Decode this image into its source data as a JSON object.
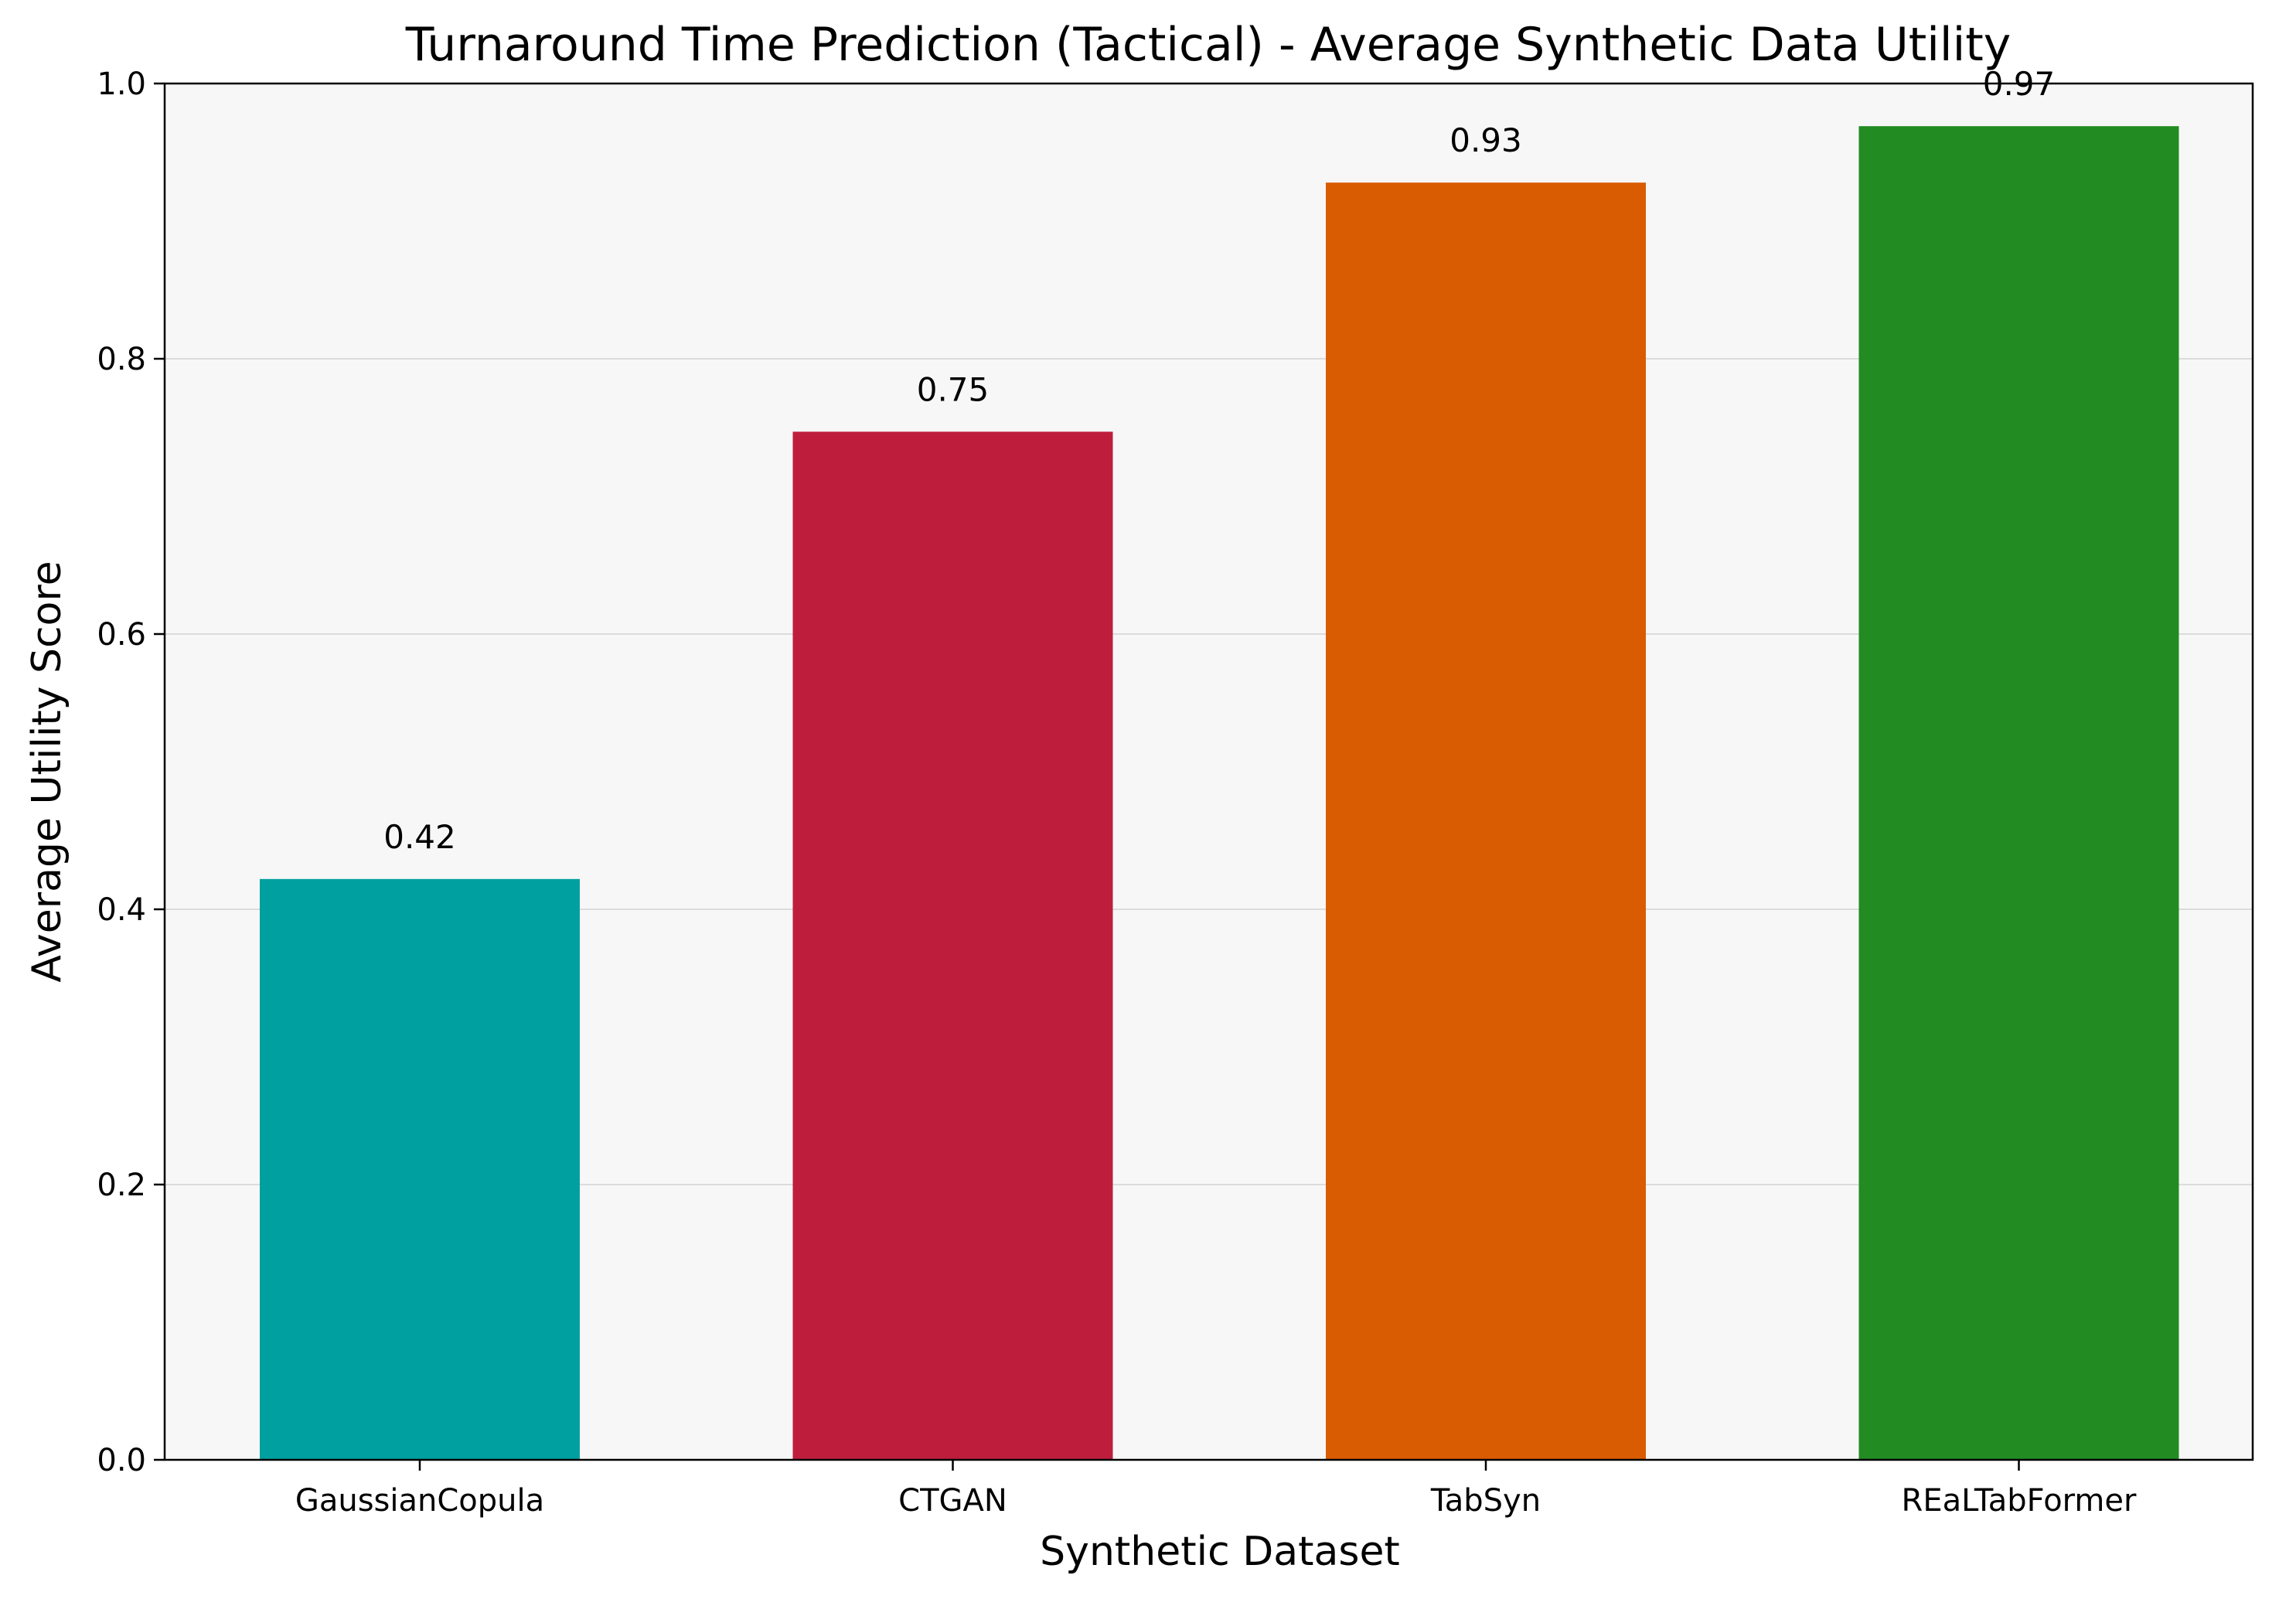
{
  "chart_data": {
    "type": "bar",
    "title": "Turnaround Time Prediction (Tactical) - Average Synthetic Data Utility",
    "xlabel": "Synthetic Dataset",
    "ylabel": "Average Utility Score",
    "categories": [
      "GaussianCopula",
      "CTGAN",
      "TabSyn",
      "REaLTabFormer"
    ],
    "values": [
      0.422,
      0.747,
      0.928,
      0.969
    ],
    "value_labels": [
      "0.42",
      "0.75",
      "0.93",
      "0.97"
    ],
    "colors": [
      "#00A0A0",
      "#BE1E3C",
      "#D95C02",
      "#228B22"
    ],
    "ylim": [
      0,
      1.0
    ],
    "yticks": [
      0.0,
      0.2,
      0.4,
      0.6,
      0.8,
      1.0
    ],
    "ytick_labels": [
      "0.0",
      "0.2",
      "0.4",
      "0.6",
      "0.8",
      "1.0"
    ],
    "grid": "horizontal",
    "plot_background": "#F7F7F7",
    "legend": "none"
  }
}
